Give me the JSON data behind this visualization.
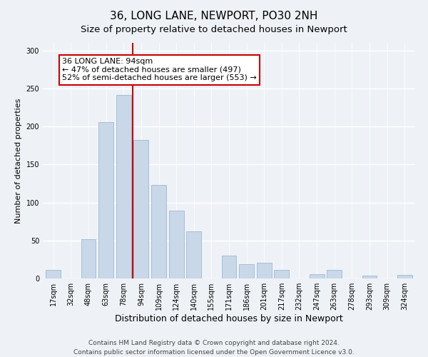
{
  "title": "36, LONG LANE, NEWPORT, PO30 2NH",
  "subtitle": "Size of property relative to detached houses in Newport",
  "xlabel": "Distribution of detached houses by size in Newport",
  "ylabel": "Number of detached properties",
  "bar_color": "#c8d8e8",
  "bar_edge_color": "#a0b8d0",
  "categories": [
    "17sqm",
    "32sqm",
    "48sqm",
    "63sqm",
    "78sqm",
    "94sqm",
    "109sqm",
    "124sqm",
    "140sqm",
    "155sqm",
    "171sqm",
    "186sqm",
    "201sqm",
    "217sqm",
    "232sqm",
    "247sqm",
    "263sqm",
    "278sqm",
    "293sqm",
    "309sqm",
    "324sqm"
  ],
  "values": [
    11,
    0,
    52,
    206,
    241,
    182,
    123,
    89,
    62,
    0,
    30,
    19,
    21,
    11,
    0,
    6,
    11,
    0,
    4,
    0,
    5
  ],
  "vline_x_index": 5,
  "vline_color": "#cc0000",
  "annotation_text": "36 LONG LANE: 94sqm\n← 47% of detached houses are smaller (497)\n52% of semi-detached houses are larger (553) →",
  "ylim": [
    0,
    310
  ],
  "yticks": [
    0,
    50,
    100,
    150,
    200,
    250,
    300
  ],
  "footer_line1": "Contains HM Land Registry data © Crown copyright and database right 2024.",
  "footer_line2": "Contains public sector information licensed under the Open Government Licence v3.0.",
  "title_fontsize": 11,
  "subtitle_fontsize": 9.5,
  "xlabel_fontsize": 9,
  "ylabel_fontsize": 8,
  "tick_fontsize": 7,
  "annotation_fontsize": 8,
  "footer_fontsize": 6.5,
  "background_color": "#eef2f7"
}
